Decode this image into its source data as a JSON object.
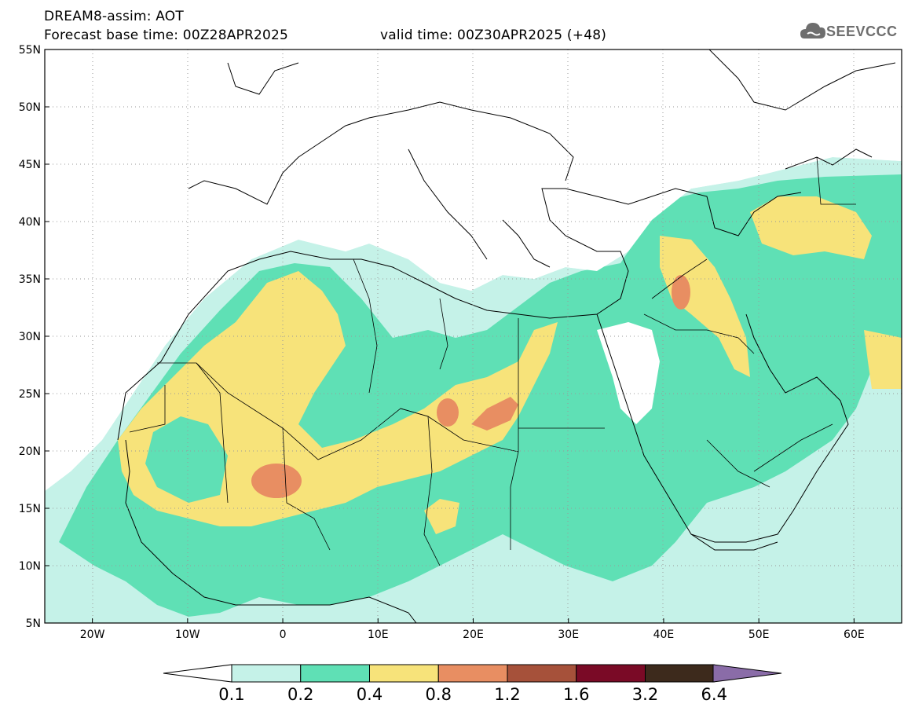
{
  "header": {
    "title_line1": "DREAM8-assim: AOT",
    "title_line2": "Forecast base time: 00Z28APR2025",
    "valid_time": "valid time: 00Z30APR2025 (+48)"
  },
  "logo": {
    "text": "SEEVCCC",
    "icon": "cloud-icon"
  },
  "map": {
    "lon_range": [
      -25,
      65
    ],
    "lat_range": [
      5,
      55
    ],
    "lon_ticks": [
      "20W",
      "10W",
      "0",
      "10E",
      "20E",
      "30E",
      "40E",
      "50E",
      "60E"
    ],
    "lat_ticks": [
      "55N",
      "50N",
      "45N",
      "40N",
      "35N",
      "30N",
      "25N",
      "20N",
      "15N",
      "10N",
      "5N"
    ],
    "grid": "dotted",
    "variable": "AOT"
  },
  "colorbar": {
    "levels": [
      "0.1",
      "0.2",
      "0.4",
      "0.8",
      "1.2",
      "1.6",
      "3.2",
      "6.4"
    ],
    "colors": [
      "#c5f2e8",
      "#5fe0b5",
      "#f7e37a",
      "#e88e62",
      "#a6513a",
      "#7a0a26",
      "#3d2a1c",
      "#8a6ca8"
    ]
  },
  "colors": {
    "c1": "#c5f2e8",
    "c2": "#5fe0b5",
    "c3": "#f7e37a",
    "c4": "#e88e62"
  }
}
